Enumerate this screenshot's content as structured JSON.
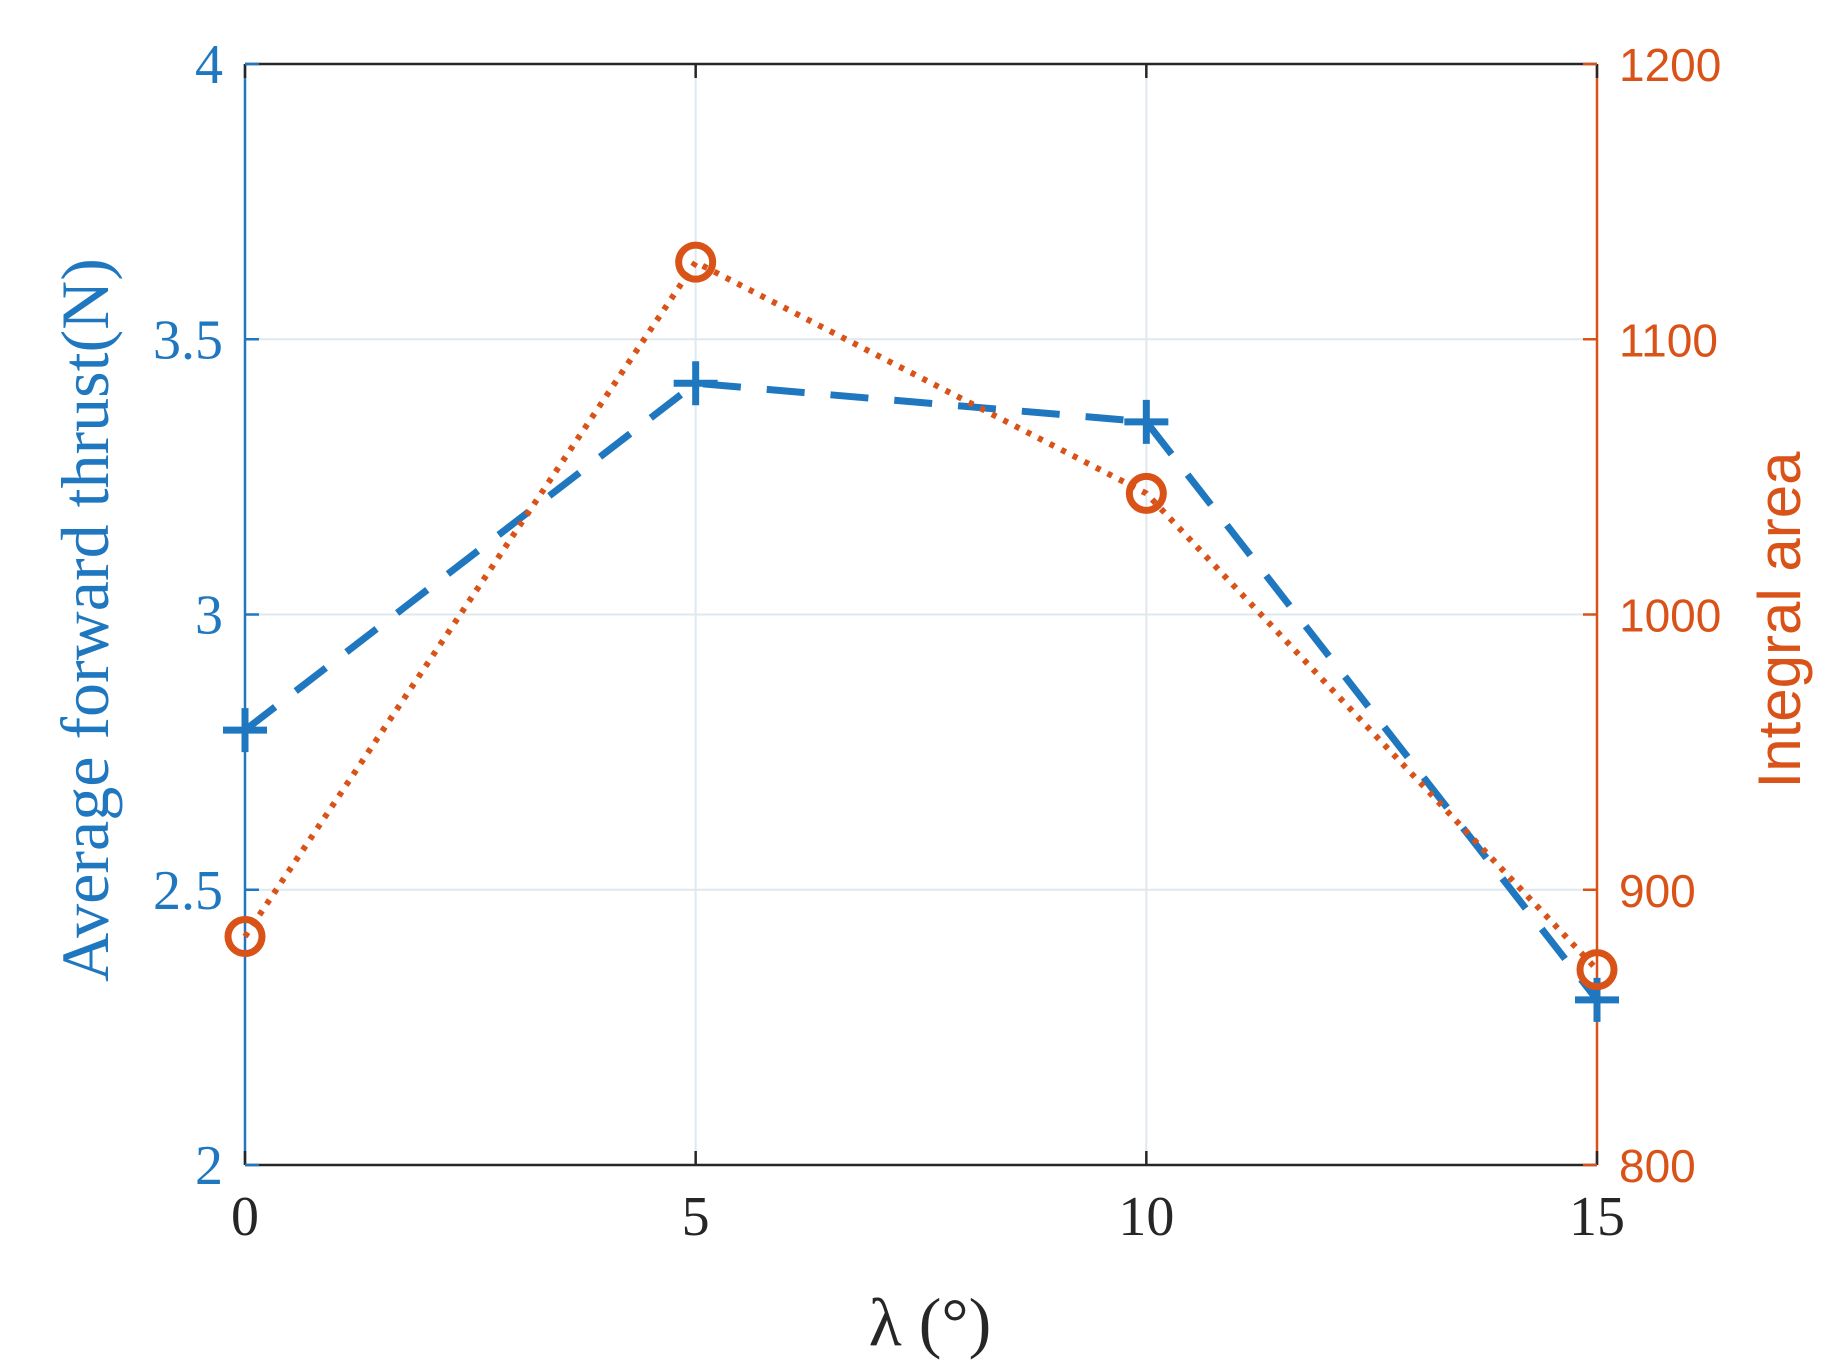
{
  "colors": {
    "left_axis": "#1f77c0",
    "right_axis": "#d95319",
    "axis_black": "#262626",
    "grid": "#dfe8ef"
  },
  "chart_data": {
    "type": "line",
    "title": "",
    "xlabel": "λ (°)",
    "ylabel_left": "Average forward thrust(N)",
    "ylabel_right": "Integral area",
    "x": [
      0,
      5,
      10,
      15
    ],
    "xlim": [
      0,
      15
    ],
    "xticks": [
      "0",
      "5",
      "10",
      "15"
    ],
    "ylim_left": [
      2,
      4
    ],
    "yticks_left": [
      "2",
      "2.5",
      "3",
      "3.5",
      "4"
    ],
    "ylim_right": [
      800,
      1200
    ],
    "yticks_right": [
      "800",
      "900",
      "1000",
      "1100",
      "1200"
    ],
    "grid": true,
    "series": [
      {
        "axis": "left",
        "marker": "plus",
        "line_style": "dashed",
        "color": "#1f77c0",
        "values": [
          2.79,
          3.42,
          3.35,
          2.3
        ]
      },
      {
        "axis": "right",
        "marker": "circle",
        "line_style": "dotted",
        "color": "#d95319",
        "values": [
          883,
          1128,
          1044,
          871
        ]
      }
    ]
  }
}
